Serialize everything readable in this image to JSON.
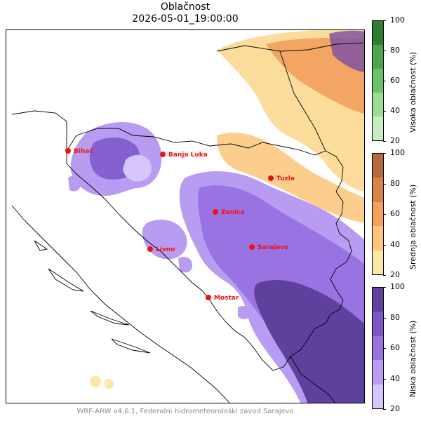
{
  "title": {
    "line1": "Oblačnost",
    "line2": "2026-05-01_19:00:00"
  },
  "footer": "WRF-ARW v4.6.1, Federalni hidrometeorološki zavod Sarajevo",
  "cities": [
    {
      "name": "Bihać",
      "id": "bihac"
    },
    {
      "name": "Banja Luka",
      "id": "banja-luka"
    },
    {
      "name": "Tuzla",
      "id": "tuzla"
    },
    {
      "name": "Zenica",
      "id": "zenica"
    },
    {
      "name": "Livno",
      "id": "livno"
    },
    {
      "name": "Sarajevo",
      "id": "sarajevo"
    },
    {
      "name": "Mostar",
      "id": "mostar"
    }
  ],
  "colorbars": [
    {
      "label": "Visoka oblačnost (%)",
      "ticks": [
        "100",
        "80",
        "60",
        "40",
        "20"
      ],
      "colors": [
        "#c6eec0",
        "#9bdc92",
        "#6cc266",
        "#4ea44c",
        "#2f7f33"
      ]
    },
    {
      "label": "Srednja oblačnost (%)",
      "ticks": [
        "100",
        "80",
        "60",
        "40",
        "20"
      ],
      "colors": [
        "#fde7a6",
        "#fcc57a",
        "#f3a058",
        "#d98344",
        "#b5693f"
      ]
    },
    {
      "label": "Niska oblačnost (%)",
      "ticks": [
        "100",
        "80",
        "60",
        "40",
        "20"
      ],
      "colors": [
        "#d6c6fb",
        "#b79cf2",
        "#9a73e3",
        "#7c56c9",
        "#5e419c"
      ]
    }
  ]
}
